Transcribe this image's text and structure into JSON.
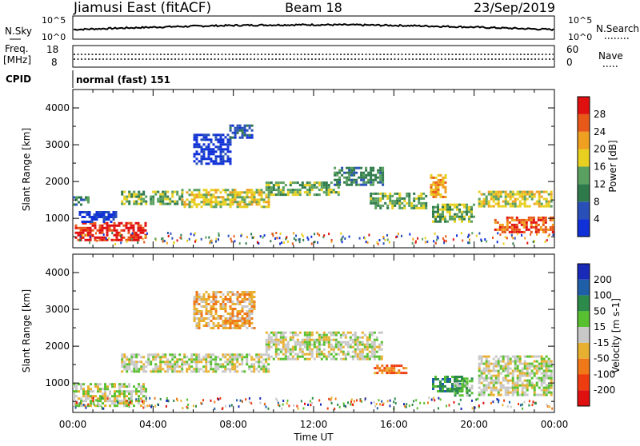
{
  "header": {
    "station": "Jiamusi East (fitACF)",
    "beam": "Beam 18",
    "date": "23/Sep/2019"
  },
  "noise_panel": {
    "left_label": "N.Sky",
    "left_ticks": [
      "10^5",
      "10^0"
    ],
    "right_label": "N.Search",
    "right_ticks": [
      "10^5",
      "10^0"
    ]
  },
  "freq_panel": {
    "left_label_line1": "Freq.",
    "left_label_line2": "[MHz]",
    "left_ticks": [
      "18",
      "8"
    ],
    "right_label": "Nave",
    "right_ticks": [
      "60",
      "0"
    ]
  },
  "cpid": {
    "label": "CPID",
    "value": "normal (fast) 151"
  },
  "colors": {
    "power_scale": [
      "#1030d8",
      "#2850b8",
      "#2e7a4a",
      "#5aa060",
      "#e8d020",
      "#f0a020",
      "#e85818",
      "#e01010"
    ],
    "velocity_scale": [
      "#1a2ab8",
      "#1f5fa8",
      "#2c8a4a",
      "#58c030",
      "#c8c8c8",
      "#e8b030",
      "#f07818",
      "#ee3c10",
      "#e01010"
    ]
  },
  "chart_data": [
    {
      "type": "heatmap",
      "panel": "power",
      "ylabel": "Slant Range [km]",
      "yticks": [
        1000,
        2000,
        3000,
        4000
      ],
      "ylim": [
        200,
        4500
      ],
      "xlim": [
        0,
        24
      ],
      "colorbar_label": "Power [dB]",
      "colorbar_ticks": [
        "4",
        "8",
        "12",
        "16",
        "20",
        "24",
        "28"
      ],
      "bands": [
        {
          "t": [
            0.0,
            0.8
          ],
          "range": [
            1400,
            1600
          ],
          "level": 2
        },
        {
          "t": [
            0.1,
            3.6
          ],
          "range": [
            400,
            900
          ],
          "level": 7
        },
        {
          "t": [
            0.3,
            2.2
          ],
          "range": [
            900,
            1200
          ],
          "level": 0
        },
        {
          "t": [
            2.4,
            5.5
          ],
          "range": [
            1400,
            1750
          ],
          "level": 3
        },
        {
          "t": [
            5.4,
            9.8
          ],
          "range": [
            1300,
            1800
          ],
          "level": 4
        },
        {
          "t": [
            6.0,
            7.9
          ],
          "range": [
            2500,
            3300
          ],
          "level": 0
        },
        {
          "t": [
            7.8,
            8.9
          ],
          "range": [
            3200,
            3550
          ],
          "level": 1
        },
        {
          "t": [
            9.6,
            13.2
          ],
          "range": [
            1650,
            2000
          ],
          "level": 3
        },
        {
          "t": [
            13.0,
            15.4
          ],
          "range": [
            1900,
            2400
          ],
          "level": 2
        },
        {
          "t": [
            14.8,
            17.6
          ],
          "range": [
            1250,
            1700
          ],
          "level": 3
        },
        {
          "t": [
            17.8,
            18.6
          ],
          "range": [
            1600,
            2200
          ],
          "level": 5
        },
        {
          "t": [
            17.9,
            20.0
          ],
          "range": [
            900,
            1400
          ],
          "level": 3
        },
        {
          "t": [
            20.2,
            23.8
          ],
          "range": [
            1300,
            1750
          ],
          "level": 4
        },
        {
          "t": [
            21.0,
            23.9
          ],
          "range": [
            600,
            1050
          ],
          "level": 6
        }
      ]
    },
    {
      "type": "heatmap",
      "panel": "velocity",
      "ylabel": "Slant Range [km]",
      "yticks": [
        1000,
        2000,
        3000,
        4000
      ],
      "ylim": [
        200,
        4500
      ],
      "xlim": [
        0,
        24
      ],
      "xlabel": "Time UT",
      "xticks": [
        "00:00",
        "04:00",
        "08:00",
        "12:00",
        "16:00",
        "20:00",
        "00:00"
      ],
      "colorbar_label": "Velocity [m s-1]",
      "colorbar_ticks": [
        "200",
        "100",
        "50",
        "15",
        "-15",
        "-50",
        "-100",
        "-200"
      ],
      "bands": [
        {
          "t": [
            0.0,
            3.6
          ],
          "range": [
            400,
            1000
          ],
          "level": 4
        },
        {
          "t": [
            2.4,
            9.8
          ],
          "range": [
            1300,
            1800
          ],
          "level": 4
        },
        {
          "t": [
            6.0,
            9.0
          ],
          "range": [
            2500,
            3500
          ],
          "level": 5
        },
        {
          "t": [
            9.6,
            15.4
          ],
          "range": [
            1650,
            2400
          ],
          "level": 4
        },
        {
          "t": [
            15.0,
            16.6
          ],
          "range": [
            1250,
            1500
          ],
          "level": 6
        },
        {
          "t": [
            17.9,
            19.6
          ],
          "range": [
            750,
            1200
          ],
          "level": 2
        },
        {
          "t": [
            19.0,
            19.9
          ],
          "range": [
            650,
            1150
          ],
          "level": 3
        },
        {
          "t": [
            20.2,
            23.9
          ],
          "range": [
            700,
            1750
          ],
          "level": 4
        }
      ]
    }
  ]
}
